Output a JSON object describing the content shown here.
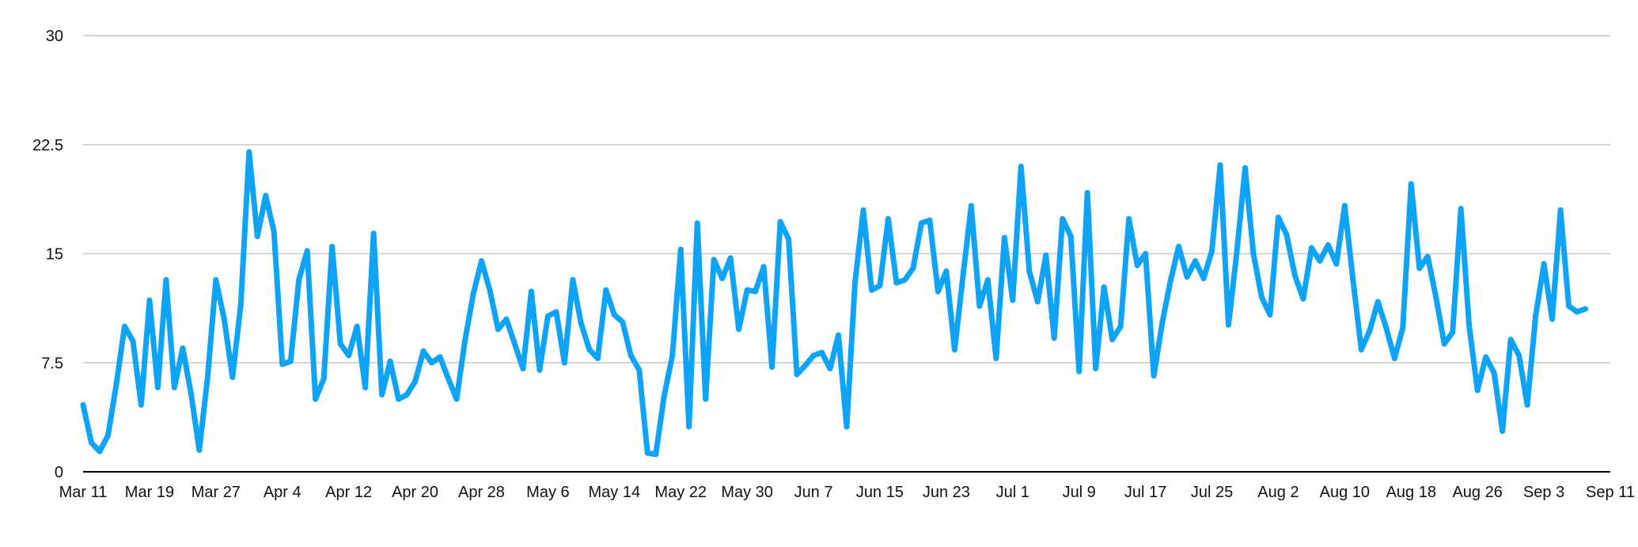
{
  "chart_data": {
    "type": "line",
    "title": "",
    "xlabel": "",
    "ylabel": "",
    "ylim": [
      0,
      30
    ],
    "yticks": [
      0,
      7.5,
      15,
      22.5,
      30
    ],
    "ytick_labels": [
      "0",
      "7.5",
      "15",
      "22.5",
      "30"
    ],
    "xlim": [
      0,
      184
    ],
    "xticks": [
      0,
      8,
      16,
      24,
      32,
      40,
      48,
      56,
      64,
      72,
      80,
      88,
      96,
      104,
      112,
      120,
      128,
      136,
      144,
      152,
      160,
      168,
      176,
      184
    ],
    "xtick_labels": [
      "Mar 11",
      "Mar 19",
      "Mar 27",
      "Apr 4",
      "Apr 12",
      "Apr 20",
      "Apr 28",
      "May 6",
      "May 14",
      "May 22",
      "May 30",
      "Jun 7",
      "Jun 15",
      "Jun 23",
      "Jul 1",
      "Jul 9",
      "Jul 17",
      "Jul 25",
      "Aug 2",
      "Aug 10",
      "Aug 18",
      "Aug 26",
      "Sep 3",
      "Sep 11"
    ],
    "grid": true,
    "legend": "none",
    "color": "#0fa3f5",
    "series": [
      {
        "x": [
          0,
          1,
          2,
          3,
          4,
          5,
          6,
          7,
          8,
          9,
          10,
          11,
          12,
          13,
          14,
          15,
          16,
          17,
          18,
          19,
          20,
          21,
          22,
          23,
          24,
          25,
          26,
          27,
          28,
          29,
          30,
          31,
          32,
          33,
          34,
          35,
          36,
          37,
          38,
          39,
          40,
          41,
          42,
          43,
          44,
          45,
          46,
          47,
          48,
          49,
          50,
          51,
          52,
          53,
          54,
          55,
          56,
          57,
          58,
          59,
          60,
          61,
          62,
          63,
          64,
          65,
          66,
          67,
          68,
          69,
          70,
          71,
          72,
          73,
          74,
          75,
          76,
          77,
          78,
          79,
          80,
          81,
          82,
          83,
          84,
          85,
          86,
          87,
          88,
          89,
          90,
          91,
          92,
          93,
          94,
          95,
          96,
          97,
          98,
          99,
          100,
          101,
          102,
          103,
          104,
          105,
          106,
          107,
          108,
          109,
          110,
          111,
          112,
          113,
          114,
          115,
          116,
          117,
          118,
          119,
          120,
          121,
          122,
          123,
          124,
          125,
          126,
          127,
          128,
          129,
          130,
          131,
          132,
          133,
          134,
          135,
          136,
          137,
          138,
          139,
          140,
          141,
          142,
          143,
          144,
          145,
          146,
          147,
          148,
          149,
          150,
          151,
          152,
          153,
          154,
          155,
          156,
          157,
          158,
          159,
          160,
          161,
          162,
          163,
          164,
          165,
          166,
          167,
          168,
          169,
          170,
          171,
          172,
          173,
          174,
          175,
          176,
          177,
          178,
          179,
          180,
          181
        ],
        "values": [
          4.6,
          2.0,
          1.4,
          2.5,
          6.0,
          10.0,
          9.0,
          4.6,
          11.8,
          5.8,
          13.2,
          5.8,
          8.5,
          5.4,
          1.5,
          6.5,
          13.2,
          10.5,
          6.5,
          11.5,
          22.0,
          16.2,
          19.0,
          16.5,
          7.4,
          7.6,
          13.2,
          15.2,
          5.0,
          6.4,
          15.5,
          8.8,
          8.0,
          10.0,
          5.8,
          16.4,
          5.3,
          7.6,
          5.0,
          5.3,
          6.2,
          8.3,
          7.5,
          7.9,
          6.4,
          5.0,
          9.0,
          12.2,
          14.5,
          12.5,
          9.8,
          10.5,
          8.8,
          7.1,
          12.4,
          7.0,
          10.7,
          11.0,
          7.5,
          13.2,
          10.2,
          8.4,
          7.8,
          12.5,
          10.8,
          10.3,
          8.0,
          7.0,
          1.3,
          1.2,
          5.2,
          8.0,
          15.3,
          3.1,
          17.1,
          5.0,
          14.6,
          13.3,
          14.7,
          9.8,
          12.5,
          12.4,
          14.1,
          7.2,
          17.2,
          16.0,
          6.7,
          7.3,
          8.0,
          8.2,
          7.1,
          9.4,
          3.1,
          13.0,
          18.0,
          12.5,
          12.8,
          17.4,
          13.0,
          13.2,
          14.0,
          17.1,
          17.3,
          12.4,
          13.8,
          8.4,
          13.4,
          18.3,
          11.4,
          13.2,
          7.8,
          16.1,
          11.8,
          21.0,
          13.8,
          11.7,
          14.9,
          9.2,
          17.4,
          16.2,
          6.9,
          19.2,
          7.1,
          12.7,
          9.1,
          10.0,
          17.4,
          14.2,
          15.0,
          6.6,
          10.2,
          13.1,
          15.5,
          13.4,
          14.5,
          13.3,
          15.2,
          21.1,
          10.1,
          15.1,
          20.9,
          15.0,
          12.0,
          10.8,
          17.5,
          16.3,
          13.5,
          11.9,
          15.4,
          14.5,
          15.6,
          14.3,
          18.3,
          13.2,
          8.4,
          9.7,
          11.7,
          9.9,
          7.8,
          9.9,
          19.8,
          14.0,
          14.8,
          12.0,
          8.8,
          9.6,
          18.1,
          10.0,
          5.6,
          7.9,
          6.8,
          2.8,
          9.1,
          8.0,
          4.6,
          10.7,
          14.3,
          10.5,
          18.0,
          11.4,
          11.0,
          11.2
        ]
      }
    ]
  }
}
